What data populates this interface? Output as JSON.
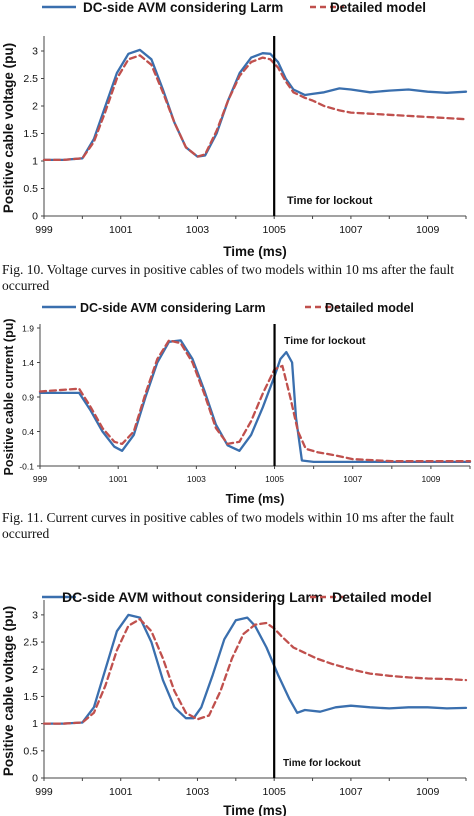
{
  "chart_data": [
    {
      "type": "line",
      "xlabel": "Time (ms)",
      "ylabel": "Positive cable voltage (pu)",
      "xlim": [
        999,
        1010
      ],
      "ylim": [
        0,
        3.2
      ],
      "x_ticks": [
        "999",
        "1001",
        "1003",
        "1005",
        "1007",
        "1009"
      ],
      "y_ticks": [
        "0",
        "0.5",
        "1",
        "1.5",
        "2",
        "2.5",
        "3"
      ],
      "legend_placement": "top",
      "annotation": {
        "text": "Time for lockout",
        "x": 1005
      },
      "series": [
        {
          "name": "DC-side AVM considering Larm",
          "color": "#3a6fae",
          "dash": "solid",
          "x": [
            999,
            999.5,
            1000,
            1000.3,
            1000.6,
            1000.9,
            1001.2,
            1001.5,
            1001.8,
            1002.1,
            1002.4,
            1002.7,
            1003,
            1003.2,
            1003.5,
            1003.8,
            1004.1,
            1004.4,
            1004.7,
            1004.9,
            1005.1,
            1005.3,
            1005.5,
            1005.8,
            1006,
            1006.3,
            1006.7,
            1007,
            1007.5,
            1008,
            1008.5,
            1009,
            1009.5,
            1010
          ],
          "y": [
            1.02,
            1.02,
            1.05,
            1.4,
            2.0,
            2.6,
            2.95,
            3.02,
            2.85,
            2.3,
            1.7,
            1.25,
            1.08,
            1.1,
            1.5,
            2.1,
            2.6,
            2.88,
            2.96,
            2.95,
            2.8,
            2.5,
            2.3,
            2.2,
            2.22,
            2.25,
            2.32,
            2.3,
            2.25,
            2.28,
            2.3,
            2.26,
            2.24,
            2.26
          ]
        },
        {
          "name": "Detailed model",
          "color": "#c0504d",
          "dash": "dashed",
          "x": [
            999,
            999.5,
            1000,
            1000.3,
            1000.6,
            1000.9,
            1001.2,
            1001.5,
            1001.8,
            1002.1,
            1002.4,
            1002.7,
            1003,
            1003.2,
            1003.5,
            1003.8,
            1004.1,
            1004.4,
            1004.7,
            1004.9,
            1005.1,
            1005.3,
            1005.5,
            1005.8,
            1006,
            1006.3,
            1006.7,
            1007,
            1007.5,
            1008,
            1008.5,
            1009,
            1009.5,
            1010
          ],
          "y": [
            1.02,
            1.02,
            1.05,
            1.35,
            1.9,
            2.5,
            2.85,
            2.92,
            2.75,
            2.25,
            1.7,
            1.25,
            1.08,
            1.12,
            1.55,
            2.1,
            2.55,
            2.8,
            2.88,
            2.85,
            2.7,
            2.45,
            2.25,
            2.15,
            2.1,
            2.0,
            1.92,
            1.88,
            1.86,
            1.84,
            1.82,
            1.8,
            1.78,
            1.76
          ]
        }
      ]
    },
    {
      "type": "line",
      "xlabel": "Time (ms)",
      "ylabel": "Positive cable current (pu)",
      "xlim": [
        999,
        1010
      ],
      "ylim": [
        -0.1,
        1.9
      ],
      "x_ticks": [
        "999",
        "1001",
        "1003",
        "1005",
        "1007",
        "1009"
      ],
      "y_ticks": [
        "-0.1",
        "0.4",
        "0.9",
        "1.4",
        "1.9"
      ],
      "legend_placement": "top",
      "annotation": {
        "text": "Time for lockout",
        "x": 1005
      },
      "series": [
        {
          "name": "DC-side AVM considering Larm",
          "color": "#3a6fae",
          "dash": "solid",
          "x": [
            999,
            999.5,
            1000,
            1000.3,
            1000.6,
            1000.9,
            1001.1,
            1001.4,
            1001.7,
            1002,
            1002.3,
            1002.6,
            1002.9,
            1003.2,
            1003.5,
            1003.8,
            1004.1,
            1004.4,
            1004.7,
            1005,
            1005.15,
            1005.3,
            1005.45,
            1005.55,
            1005.7,
            1006,
            1007,
            1008,
            1009,
            1010
          ],
          "y": [
            0.96,
            0.96,
            0.96,
            0.7,
            0.4,
            0.18,
            0.12,
            0.35,
            0.9,
            1.4,
            1.7,
            1.72,
            1.45,
            1.0,
            0.5,
            0.2,
            0.12,
            0.35,
            0.75,
            1.2,
            1.45,
            1.55,
            1.4,
            0.6,
            -0.02,
            -0.04,
            -0.04,
            -0.04,
            -0.04,
            -0.04
          ]
        },
        {
          "name": "Detailed model",
          "color": "#c0504d",
          "dash": "dashed",
          "x": [
            999,
            999.5,
            1000,
            1000.3,
            1000.6,
            1000.9,
            1001.1,
            1001.4,
            1001.7,
            1002,
            1002.3,
            1002.6,
            1002.9,
            1003.2,
            1003.5,
            1003.8,
            1004.1,
            1004.4,
            1004.7,
            1005,
            1005.2,
            1005.4,
            1005.6,
            1005.8,
            1006.1,
            1006.5,
            1007,
            1008,
            1009,
            1010
          ],
          "y": [
            0.98,
            1.0,
            1.02,
            0.75,
            0.45,
            0.25,
            0.22,
            0.4,
            0.95,
            1.45,
            1.72,
            1.68,
            1.4,
            0.95,
            0.45,
            0.22,
            0.25,
            0.55,
            0.95,
            1.3,
            1.35,
            0.9,
            0.4,
            0.15,
            0.1,
            0.06,
            0.0,
            -0.03,
            -0.03,
            -0.03
          ]
        }
      ]
    },
    {
      "type": "line",
      "xlabel": "Time (ms)",
      "ylabel": "Positive cable voltage (pu)",
      "xlim": [
        999,
        1010
      ],
      "ylim": [
        0,
        3.2
      ],
      "x_ticks": [
        "999",
        "1001",
        "1003",
        "1005",
        "1007",
        "1009"
      ],
      "y_ticks": [
        "0",
        "0.5",
        "1",
        "1.5",
        "2",
        "2.5",
        "3"
      ],
      "legend_placement": "top",
      "annotation": {
        "text": "Time for lockout",
        "x": 1005
      },
      "series": [
        {
          "name": "DC-side AVM without considering Larm",
          "color": "#3a6fae",
          "dash": "solid",
          "x": [
            999,
            999.5,
            1000,
            1000.3,
            1000.6,
            1000.9,
            1001.2,
            1001.5,
            1001.8,
            1002.1,
            1002.4,
            1002.7,
            1002.9,
            1003.1,
            1003.4,
            1003.7,
            1004,
            1004.3,
            1004.5,
            1004.8,
            1005.1,
            1005.4,
            1005.6,
            1005.8,
            1006.2,
            1006.6,
            1007,
            1007.5,
            1008,
            1008.5,
            1009,
            1009.5,
            1010
          ],
          "y": [
            1.0,
            1.0,
            1.02,
            1.3,
            2.0,
            2.7,
            3.0,
            2.95,
            2.5,
            1.8,
            1.3,
            1.1,
            1.1,
            1.3,
            1.9,
            2.55,
            2.9,
            2.95,
            2.8,
            2.4,
            1.9,
            1.45,
            1.2,
            1.25,
            1.22,
            1.3,
            1.33,
            1.3,
            1.28,
            1.3,
            1.3,
            1.28,
            1.29
          ]
        },
        {
          "name": "Detailed model",
          "color": "#c0504d",
          "dash": "dashed",
          "x": [
            999,
            999.5,
            1000,
            1000.3,
            1000.6,
            1000.9,
            1001.2,
            1001.5,
            1001.8,
            1002.1,
            1002.4,
            1002.7,
            1003,
            1003.3,
            1003.6,
            1003.9,
            1004.2,
            1004.5,
            1004.8,
            1005,
            1005.2,
            1005.5,
            1005.8,
            1006.1,
            1006.5,
            1007,
            1007.5,
            1008,
            1008.5,
            1009,
            1009.5,
            1010
          ],
          "y": [
            1.0,
            1.0,
            1.02,
            1.2,
            1.7,
            2.35,
            2.8,
            2.92,
            2.7,
            2.2,
            1.6,
            1.2,
            1.08,
            1.15,
            1.6,
            2.2,
            2.65,
            2.82,
            2.85,
            2.75,
            2.6,
            2.4,
            2.3,
            2.2,
            2.1,
            2.0,
            1.92,
            1.88,
            1.85,
            1.83,
            1.82,
            1.8
          ]
        }
      ]
    }
  ],
  "captions": {
    "fig10": "Fig. 10.  Voltage curves in positive cables of two models within 10 ms after the fault occurred",
    "fig11": "Fig. 11.  Current curves in positive cables of two models within 10 ms after the fault occurred"
  }
}
